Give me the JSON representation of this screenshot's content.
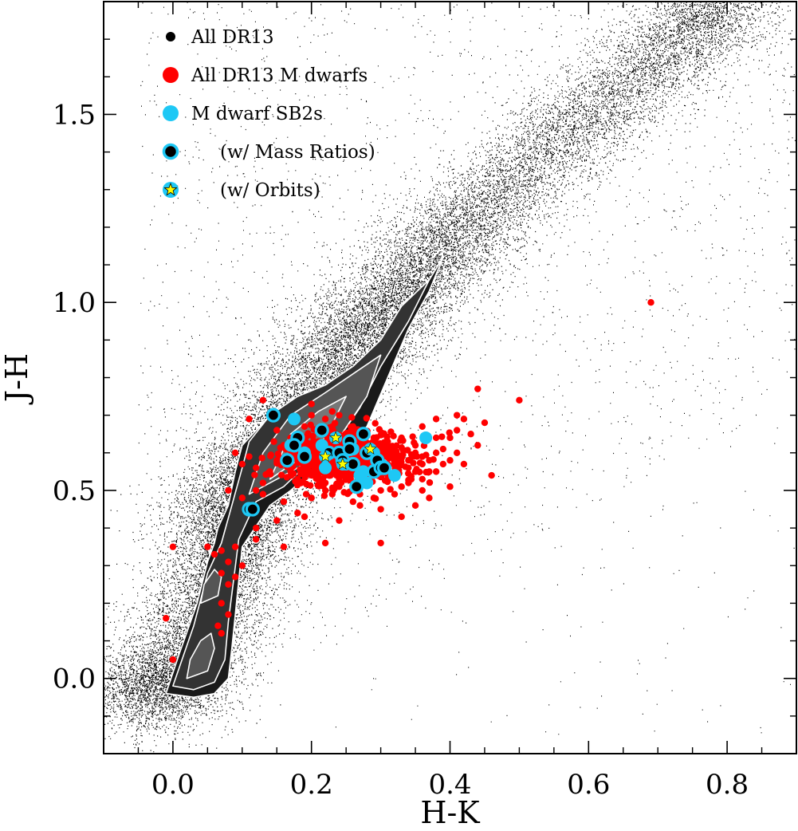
{
  "chart_data": {
    "type": "scatter",
    "xlabel": "H-K",
    "ylabel": "J-H",
    "xlim": [
      -0.1,
      0.9
    ],
    "ylim": [
      -0.2,
      1.8
    ],
    "x_ticks": [
      0.0,
      0.2,
      0.4,
      0.6,
      0.8
    ],
    "x_tick_labels": [
      "0.0",
      "0.2",
      "0.4",
      "0.6",
      "0.8"
    ],
    "y_ticks": [
      0.0,
      0.5,
      1.0,
      1.5
    ],
    "y_tick_labels": [
      "0.0",
      "0.5",
      "1.0",
      "1.5"
    ],
    "x_minor_step": 0.05,
    "y_minor_step": 0.1,
    "legend_position": "top-left",
    "legend": [
      {
        "label": "All DR13",
        "marker": "black-dot"
      },
      {
        "label": "All DR13 M dwarfs",
        "marker": "red-dot"
      },
      {
        "label": "M dwarf SB2s",
        "marker": "cyan-dot"
      },
      {
        "label": "(w/ Mass Ratios)",
        "marker": "black-dot-cyan-ring"
      },
      {
        "label": "(w/ Orbits)",
        "marker": "yellow-star-cyan-ring"
      }
    ],
    "colors": {
      "dr13": "#000000",
      "m_dwarfs": "#ff0000",
      "sb2": "#1ec8f5",
      "star": "#ffff00",
      "contour_line": "#ffffff"
    },
    "background_distribution": {
      "description_of_sequence": "dense locus of all DR13 stars",
      "ridge": [
        [
          -0.05,
          -0.05
        ],
        [
          0.0,
          0.0
        ],
        [
          0.05,
          0.18
        ],
        [
          0.08,
          0.35
        ],
        [
          0.09,
          0.45
        ],
        [
          0.12,
          0.55
        ],
        [
          0.16,
          0.68
        ],
        [
          0.22,
          0.82
        ],
        [
          0.28,
          0.93
        ],
        [
          0.33,
          1.02
        ],
        [
          0.38,
          1.13
        ],
        [
          0.45,
          1.25
        ],
        [
          0.55,
          1.42
        ],
        [
          0.65,
          1.57
        ],
        [
          0.75,
          1.72
        ],
        [
          0.8,
          1.8
        ]
      ]
    },
    "contours": [
      {
        "level": 1,
        "x": [
          -0.01,
          0.03,
          0.06,
          0.08,
          0.085,
          0.1,
          0.14,
          0.17,
          0.2,
          0.24,
          0.28,
          0.31,
          0.34,
          0.37,
          0.39,
          0.38,
          0.35,
          0.32,
          0.28,
          0.26,
          0.22,
          0.18,
          0.14,
          0.1,
          0.09,
          0.08,
          0.065,
          0.06,
          0.05,
          0.035,
          0.01,
          -0.01
        ],
        "y": [
          -0.04,
          -0.05,
          -0.04,
          -0.0,
          0.08,
          0.35,
          0.46,
          0.5,
          0.55,
          0.6,
          0.67,
          0.8,
          0.93,
          1.03,
          1.12,
          1.09,
          1.0,
          0.92,
          0.84,
          0.79,
          0.76,
          0.73,
          0.7,
          0.62,
          0.55,
          0.46,
          0.4,
          0.36,
          0.31,
          0.2,
          0.07,
          -0.04
        ]
      },
      {
        "level": 2,
        "x": [
          0.0,
          0.03,
          0.06,
          0.075,
          0.08,
          0.095,
          0.12,
          0.16,
          0.2,
          0.24,
          0.27,
          0.3,
          0.34,
          0.37,
          0.33,
          0.3,
          0.26,
          0.22,
          0.18,
          0.14,
          0.11,
          0.1,
          0.085,
          0.07,
          0.05,
          0.03,
          0.0
        ],
        "y": [
          -0.02,
          -0.03,
          -0.01,
          0.05,
          0.15,
          0.37,
          0.47,
          0.51,
          0.58,
          0.64,
          0.72,
          0.83,
          0.95,
          1.06,
          0.99,
          0.9,
          0.83,
          0.78,
          0.75,
          0.7,
          0.63,
          0.56,
          0.46,
          0.36,
          0.28,
          0.14,
          -0.02
        ]
      },
      {
        "level": 3,
        "x": [
          0.02,
          0.05,
          0.06,
          0.055,
          0.04,
          0.025,
          0.02
        ],
        "y": [
          0.0,
          0.02,
          0.08,
          0.12,
          0.1,
          0.05,
          0.0
        ]
      },
      {
        "level": 3,
        "x": [
          0.04,
          0.065,
          0.07,
          0.06,
          0.045,
          0.04
        ],
        "y": [
          0.2,
          0.22,
          0.27,
          0.29,
          0.25,
          0.2
        ]
      },
      {
        "level": 3,
        "x": [
          0.11,
          0.15,
          0.2,
          0.24,
          0.28,
          0.3,
          0.26,
          0.22,
          0.17,
          0.13,
          0.11
        ],
        "y": [
          0.49,
          0.53,
          0.58,
          0.64,
          0.75,
          0.86,
          0.81,
          0.76,
          0.7,
          0.6,
          0.49
        ]
      },
      {
        "level": 4,
        "x": [
          0.14,
          0.18,
          0.22,
          0.25,
          0.21,
          0.17,
          0.14
        ],
        "y": [
          0.53,
          0.58,
          0.64,
          0.75,
          0.71,
          0.65,
          0.53
        ]
      }
    ],
    "series": [
      {
        "name": "All DR13 M dwarfs",
        "points": [
          [
            0.18,
            0.6
          ],
          [
            0.19,
            0.62
          ],
          [
            0.2,
            0.58
          ],
          [
            0.21,
            0.63
          ],
          [
            0.22,
            0.6
          ],
          [
            0.23,
            0.56
          ],
          [
            0.24,
            0.62
          ],
          [
            0.25,
            0.6
          ],
          [
            0.26,
            0.57
          ],
          [
            0.27,
            0.62
          ],
          [
            0.28,
            0.58
          ],
          [
            0.29,
            0.55
          ],
          [
            0.3,
            0.6
          ],
          [
            0.31,
            0.57
          ],
          [
            0.32,
            0.55
          ],
          [
            0.33,
            0.59
          ],
          [
            0.34,
            0.56
          ],
          [
            0.35,
            0.6
          ],
          [
            0.36,
            0.57
          ],
          [
            0.37,
            0.55
          ],
          [
            0.17,
            0.55
          ],
          [
            0.18,
            0.53
          ],
          [
            0.2,
            0.54
          ],
          [
            0.22,
            0.52
          ],
          [
            0.24,
            0.53
          ],
          [
            0.26,
            0.51
          ],
          [
            0.28,
            0.52
          ],
          [
            0.3,
            0.5
          ],
          [
            0.21,
            0.66
          ],
          [
            0.23,
            0.67
          ],
          [
            0.25,
            0.65
          ],
          [
            0.27,
            0.66
          ],
          [
            0.19,
            0.67
          ],
          [
            0.17,
            0.64
          ],
          [
            0.29,
            0.64
          ],
          [
            0.31,
            0.63
          ],
          [
            0.33,
            0.64
          ],
          [
            0.35,
            0.62
          ],
          [
            0.38,
            0.6
          ],
          [
            0.4,
            0.58
          ],
          [
            0.16,
            0.62
          ],
          [
            0.15,
            0.66
          ],
          [
            0.14,
            0.7
          ],
          [
            0.2,
            0.7
          ],
          [
            0.22,
            0.69
          ],
          [
            0.24,
            0.7
          ],
          [
            0.26,
            0.67
          ],
          [
            0.2,
            0.48
          ],
          [
            0.23,
            0.49
          ],
          [
            0.26,
            0.47
          ],
          [
            0.29,
            0.48
          ],
          [
            0.32,
            0.49
          ],
          [
            0.34,
            0.52
          ],
          [
            0.36,
            0.53
          ],
          [
            0.38,
            0.55
          ],
          [
            0.39,
            0.61
          ],
          [
            0.4,
            0.64
          ],
          [
            0.41,
            0.66
          ],
          [
            0.42,
            0.69
          ],
          [
            0.44,
            0.77
          ],
          [
            0.5,
            0.74
          ],
          [
            0.38,
            0.69
          ],
          [
            0.36,
            0.67
          ],
          [
            0.38,
            0.64
          ],
          [
            0.41,
            0.7
          ],
          [
            0.43,
            0.65
          ],
          [
            0.45,
            0.68
          ],
          [
            0.46,
            0.54
          ],
          [
            0.35,
            0.46
          ],
          [
            0.33,
            0.43
          ],
          [
            0.3,
            0.45
          ],
          [
            0.27,
            0.46
          ],
          [
            0.24,
            0.42
          ],
          [
            0.19,
            0.43
          ],
          [
            0.16,
            0.47
          ],
          [
            0.13,
            0.49
          ],
          [
            0.12,
            0.56
          ],
          [
            0.11,
            0.59
          ],
          [
            0.1,
            0.57
          ],
          [
            0.09,
            0.6
          ],
          [
            0.14,
            0.55
          ],
          [
            0.15,
            0.58
          ],
          [
            0.13,
            0.52
          ],
          [
            0.12,
            0.5
          ],
          [
            0.11,
            0.46
          ],
          [
            0.1,
            0.48
          ],
          [
            0.08,
            0.5
          ],
          [
            0.07,
            0.34
          ],
          [
            0.08,
            0.31
          ],
          [
            0.07,
            0.28
          ],
          [
            0.08,
            0.25
          ],
          [
            0.07,
            0.2
          ],
          [
            0.08,
            0.17
          ],
          [
            0.065,
            0.14
          ],
          [
            0.07,
            0.12
          ],
          [
            0.09,
            0.27
          ],
          [
            0.1,
            0.3
          ],
          [
            0.09,
            0.35
          ],
          [
            0.12,
            0.4
          ],
          [
            0.15,
            0.42
          ],
          [
            0.16,
            0.35
          ],
          [
            0.18,
            0.44
          ],
          [
            0.0,
            0.05
          ],
          [
            -0.01,
            0.16
          ],
          [
            0.0,
            0.35
          ],
          [
            0.05,
            0.35
          ],
          [
            0.06,
            0.33
          ],
          [
            0.12,
            0.37
          ],
          [
            0.22,
            0.36
          ],
          [
            0.3,
            0.36
          ],
          [
            0.69,
            1.0
          ],
          [
            0.11,
            0.69
          ],
          [
            0.13,
            0.74
          ],
          [
            0.2,
            0.73
          ],
          [
            0.23,
            0.71
          ],
          [
            0.36,
            0.5
          ],
          [
            0.4,
            0.51
          ],
          [
            0.37,
            0.48
          ],
          [
            0.42,
            0.57
          ],
          [
            0.44,
            0.62
          ],
          [
            0.25,
            0.55
          ],
          [
            0.27,
            0.54
          ],
          [
            0.26,
            0.59
          ],
          [
            0.28,
            0.6
          ],
          [
            0.3,
            0.62
          ],
          [
            0.32,
            0.61
          ],
          [
            0.34,
            0.58
          ],
          [
            0.36,
            0.59
          ],
          [
            0.21,
            0.55
          ],
          [
            0.19,
            0.56
          ],
          [
            0.23,
            0.59
          ],
          [
            0.22,
            0.56
          ],
          [
            0.24,
            0.51
          ],
          [
            0.27,
            0.49
          ],
          [
            0.31,
            0.53
          ],
          [
            0.33,
            0.51
          ],
          [
            0.35,
            0.55
          ],
          [
            0.37,
            0.58
          ],
          [
            0.39,
            0.57
          ],
          [
            0.41,
            0.6
          ]
        ]
      },
      {
        "name": "M dwarf SB2s",
        "points": [
          [
            0.175,
            0.69
          ],
          [
            0.215,
            0.62
          ],
          [
            0.275,
            0.55
          ],
          [
            0.28,
            0.52
          ],
          [
            0.3,
            0.57
          ],
          [
            0.32,
            0.54
          ],
          [
            0.365,
            0.64
          ],
          [
            0.17,
            0.62
          ],
          [
            0.19,
            0.6
          ],
          [
            0.25,
            0.57
          ],
          [
            0.27,
            0.54
          ],
          [
            0.22,
            0.56
          ],
          [
            0.26,
            0.61
          ],
          [
            0.29,
            0.6
          ]
        ]
      },
      {
        "name": "(w/ Mass Ratios)",
        "points": [
          [
            0.145,
            0.7
          ],
          [
            0.18,
            0.64
          ],
          [
            0.175,
            0.62
          ],
          [
            0.165,
            0.58
          ],
          [
            0.19,
            0.59
          ],
          [
            0.215,
            0.66
          ],
          [
            0.225,
            0.6
          ],
          [
            0.24,
            0.6
          ],
          [
            0.245,
            0.58
          ],
          [
            0.255,
            0.63
          ],
          [
            0.255,
            0.61
          ],
          [
            0.26,
            0.57
          ],
          [
            0.265,
            0.51
          ],
          [
            0.275,
            0.65
          ],
          [
            0.28,
            0.6
          ],
          [
            0.29,
            0.55
          ],
          [
            0.295,
            0.58
          ],
          [
            0.3,
            0.56
          ],
          [
            0.305,
            0.56
          ],
          [
            0.11,
            0.45
          ],
          [
            0.115,
            0.45
          ]
        ]
      },
      {
        "name": "(w/ Orbits)",
        "points": [
          [
            0.235,
            0.64
          ],
          [
            0.22,
            0.59
          ],
          [
            0.245,
            0.57
          ],
          [
            0.285,
            0.61
          ]
        ]
      }
    ]
  }
}
